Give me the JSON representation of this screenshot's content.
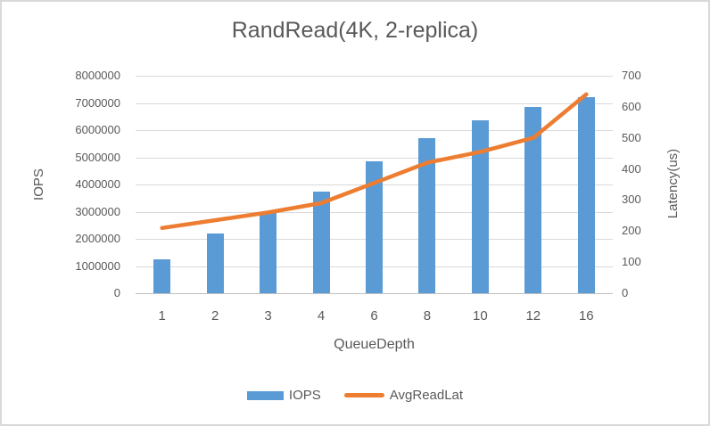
{
  "window": {
    "background": "#ffffff",
    "border_color": "#d9d9d9"
  },
  "chart_data": {
    "type": "bar",
    "subtype": "bar+line dual axis",
    "title": "RandRead(4K, 2-replica)",
    "categories": [
      "1",
      "2",
      "3",
      "4",
      "6",
      "8",
      "10",
      "12",
      "16"
    ],
    "xlabel": "QueueDepth",
    "grid": true,
    "legend_position": "bottom",
    "colors": {
      "bar": "#5b9bd5",
      "line": "#ed7d31",
      "gridline": "#d9d9d9",
      "axis_line": "#bfbfbf",
      "text": "#595959"
    },
    "left_axis": {
      "label": "IOPS",
      "min": 0,
      "max": 8000000,
      "step": 1000000,
      "tick_labels": [
        "8000000",
        "7000000",
        "6000000",
        "5000000",
        "4000000",
        "3000000",
        "2000000",
        "1000000",
        "0"
      ]
    },
    "right_axis": {
      "label": "Latency(us)",
      "min": 0,
      "max": 700,
      "step": 100,
      "tick_labels": [
        "700",
        "600",
        "500",
        "400",
        "300",
        "200",
        "100",
        "0"
      ]
    },
    "series": [
      {
        "name": "IOPS",
        "type": "bar",
        "axis": "left",
        "color": "#5b9bd5",
        "values": [
          1250000,
          2200000,
          3000000,
          3750000,
          4850000,
          5700000,
          6350000,
          6850000,
          7200000
        ]
      },
      {
        "name": "AvgReadLat",
        "type": "line",
        "axis": "right",
        "color": "#ed7d31",
        "values": [
          210,
          235,
          260,
          290,
          355,
          420,
          455,
          500,
          640
        ]
      }
    ],
    "legend": [
      {
        "label": "IOPS",
        "marker": "bar",
        "color": "#5b9bd5"
      },
      {
        "label": "AvgReadLat",
        "marker": "line",
        "color": "#ed7d31"
      }
    ]
  }
}
